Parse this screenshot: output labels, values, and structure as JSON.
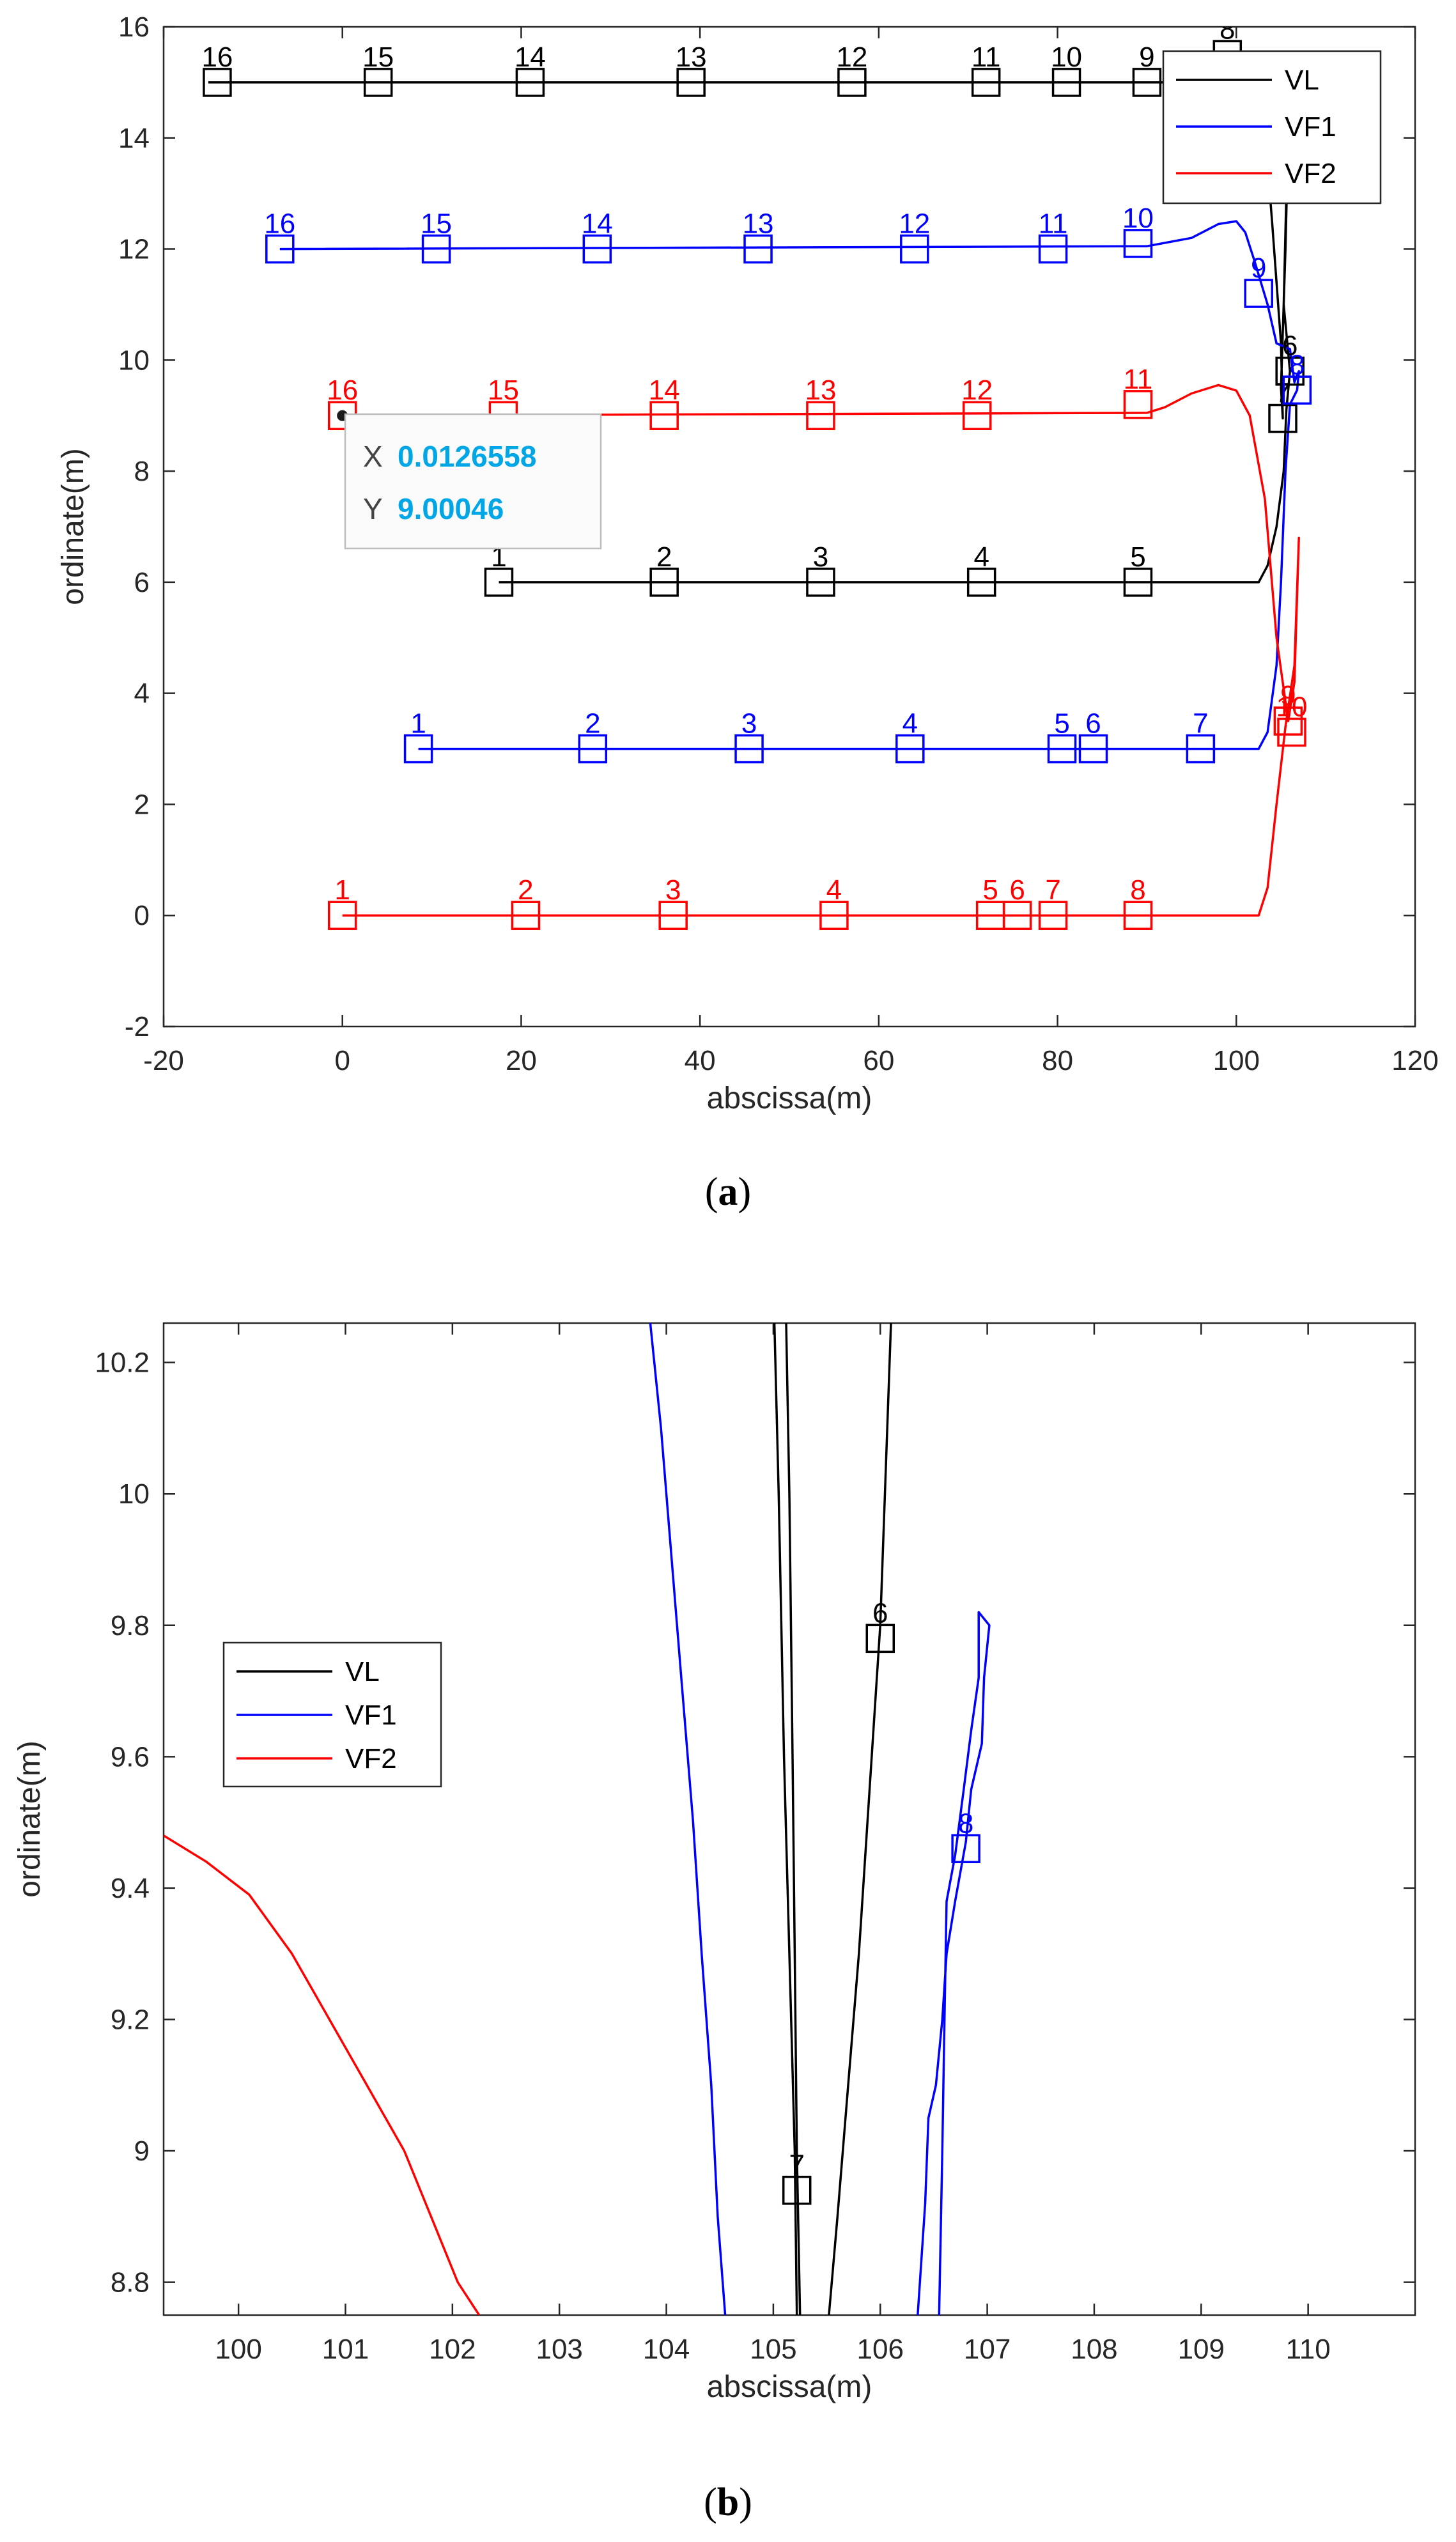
{
  "chart_data": [
    {
      "type": "line",
      "panel": "a",
      "caption_label": "a",
      "xlabel": "abscissa(m)",
      "ylabel": "ordinate(m)",
      "xlim": [
        -20,
        120
      ],
      "ylim": [
        -2,
        16
      ],
      "xticks": [
        -20,
        0,
        20,
        40,
        60,
        80,
        100,
        120
      ],
      "yticks": [
        -2,
        0,
        2,
        4,
        6,
        8,
        10,
        12,
        14,
        16
      ],
      "grid": false,
      "legend": {
        "placement": "top-right",
        "entries": [
          "VL",
          "VF1",
          "VF2"
        ]
      },
      "series": [
        {
          "name": "VL",
          "color": "#000000",
          "line": [
            [
              -15,
              15
            ],
            [
              99,
              15
            ],
            [
              100,
              15.3
            ],
            [
              101,
              15.5
            ],
            [
              102,
              15.4
            ],
            [
              103,
              14.5
            ],
            [
              104,
              12.5
            ],
            [
              105,
              10.3
            ],
            [
              105.2,
              8.95
            ],
            [
              105,
              9.5
            ],
            [
              105.5,
              12
            ],
            [
              105.8,
              14
            ],
            [
              106,
              15.5
            ],
            [
              105.6,
              13
            ],
            [
              105.3,
              11
            ],
            [
              106,
              9.8
            ],
            [
              105.6,
              9.1
            ],
            [
              105.3,
              8
            ],
            [
              104.5,
              7
            ],
            [
              103.5,
              6.3
            ],
            [
              102.5,
              6
            ],
            [
              17.5,
              6
            ]
          ],
          "markers": [
            {
              "label": "1",
              "x": 17.5,
              "y": 6
            },
            {
              "label": "2",
              "x": 36,
              "y": 6
            },
            {
              "label": "3",
              "x": 53.5,
              "y": 6
            },
            {
              "label": "4",
              "x": 71.5,
              "y": 6
            },
            {
              "label": "5",
              "x": 89,
              "y": 6
            },
            {
              "label": "6",
              "x": 106,
              "y": 9.8
            },
            {
              "label": "7",
              "x": 105.2,
              "y": 8.95
            },
            {
              "label": "8",
              "x": 99,
              "y": 15.5
            },
            {
              "label": "9",
              "x": 90,
              "y": 15
            },
            {
              "label": "10",
              "x": 81,
              "y": 15
            },
            {
              "label": "11",
              "x": 72,
              "y": 15
            },
            {
              "label": "12",
              "x": 57,
              "y": 15
            },
            {
              "label": "13",
              "x": 39,
              "y": 15
            },
            {
              "label": "14",
              "x": 21,
              "y": 15
            },
            {
              "label": "15",
              "x": 4,
              "y": 15
            },
            {
              "label": "16",
              "x": -14,
              "y": 15
            }
          ]
        },
        {
          "name": "VF1",
          "color": "#0000ff",
          "line": [
            [
              8.5,
              3
            ],
            [
              102.5,
              3
            ],
            [
              103.5,
              3.3
            ],
            [
              104.5,
              4.5
            ],
            [
              105,
              6
            ],
            [
              105.5,
              8
            ],
            [
              106,
              9.2
            ],
            [
              106.8,
              9.46
            ],
            [
              107,
              9.8
            ],
            [
              106.5,
              9.6
            ],
            [
              106,
              10.2
            ],
            [
              104.5,
              10.3
            ],
            [
              103.5,
              11
            ],
            [
              102,
              11.8
            ],
            [
              101,
              12.3
            ],
            [
              100,
              12.5
            ],
            [
              98,
              12.45
            ],
            [
              95,
              12.2
            ],
            [
              90,
              12.05
            ],
            [
              -7,
              12
            ]
          ],
          "markers": [
            {
              "label": "1",
              "x": 8.5,
              "y": 3
            },
            {
              "label": "2",
              "x": 28,
              "y": 3
            },
            {
              "label": "3",
              "x": 45.5,
              "y": 3
            },
            {
              "label": "4",
              "x": 63.5,
              "y": 3
            },
            {
              "label": "5",
              "x": 80.5,
              "y": 3
            },
            {
              "label": "6",
              "x": 84,
              "y": 3
            },
            {
              "label": "7",
              "x": 96,
              "y": 3
            },
            {
              "label": "8",
              "x": 106.8,
              "y": 9.46
            },
            {
              "label": "9",
              "x": 102.5,
              "y": 11.2
            },
            {
              "label": "10",
              "x": 89,
              "y": 12.1
            },
            {
              "label": "11",
              "x": 79.5,
              "y": 12
            },
            {
              "label": "12",
              "x": 64,
              "y": 12
            },
            {
              "label": "13",
              "x": 46.5,
              "y": 12
            },
            {
              "label": "14",
              "x": 28.5,
              "y": 12
            },
            {
              "label": "15",
              "x": 10.5,
              "y": 12
            },
            {
              "label": "16",
              "x": -7,
              "y": 12
            }
          ]
        },
        {
          "name": "VF2",
          "color": "#ff0000",
          "line": [
            [
              0,
              0
            ],
            [
              102.5,
              0
            ],
            [
              103.5,
              0.5
            ],
            [
              104.5,
              2
            ],
            [
              105.5,
              3.4
            ],
            [
              106.5,
              4.5
            ],
            [
              107,
              6.8
            ],
            [
              106.5,
              4.2
            ],
            [
              105.8,
              3.5
            ],
            [
              104.5,
              5
            ],
            [
              103.2,
              7.5
            ],
            [
              101.5,
              9
            ],
            [
              100,
              9.45
            ],
            [
              98,
              9.55
            ],
            [
              95,
              9.4
            ],
            [
              92,
              9.15
            ],
            [
              90,
              9.05
            ],
            [
              0,
              9
            ]
          ],
          "markers": [
            {
              "label": "1",
              "x": 0,
              "y": 0
            },
            {
              "label": "2",
              "x": 20.5,
              "y": 0
            },
            {
              "label": "3",
              "x": 37,
              "y": 0
            },
            {
              "label": "4",
              "x": 55,
              "y": 0
            },
            {
              "label": "5",
              "x": 72.5,
              "y": 0
            },
            {
              "label": "6",
              "x": 75.5,
              "y": 0
            },
            {
              "label": "7",
              "x": 79.5,
              "y": 0
            },
            {
              "label": "8",
              "x": 89,
              "y": 0
            },
            {
              "label": "9",
              "x": 105.8,
              "y": 3.5
            },
            {
              "label": "10",
              "x": 106.2,
              "y": 3.3
            },
            {
              "label": "11",
              "x": 89,
              "y": 9.2
            },
            {
              "label": "12",
              "x": 71,
              "y": 9
            },
            {
              "label": "13",
              "x": 53.5,
              "y": 9
            },
            {
              "label": "14",
              "x": 36,
              "y": 9
            },
            {
              "label": "15",
              "x": 18,
              "y": 9
            },
            {
              "label": "16",
              "x": 0,
              "y": 9
            }
          ]
        }
      ],
      "datatip": {
        "x_label": "X",
        "x_value": "0.0126558",
        "y_label": "Y",
        "y_value": "9.00046",
        "point": [
          0,
          9
        ]
      }
    },
    {
      "type": "line",
      "panel": "b",
      "caption_label": "b",
      "xlabel": "abscissa(m)",
      "ylabel": "ordinate(m)",
      "xlim": [
        99.3,
        111
      ],
      "ylim": [
        8.75,
        10.26
      ],
      "xticks": [
        100,
        101,
        102,
        103,
        104,
        105,
        106,
        107,
        108,
        109,
        110
      ],
      "yticks": [
        8.8,
        9,
        9.2,
        9.4,
        9.6,
        9.8,
        10,
        10.2
      ],
      "ytick_labels": [
        "8.8",
        "9",
        "9.2",
        "9.4",
        "9.6",
        "9.8",
        "10",
        "10.2"
      ],
      "grid": false,
      "legend": {
        "placement": "top-left",
        "entries": [
          "VL",
          "VF1",
          "VF2"
        ]
      },
      "series": [
        {
          "name": "VL",
          "color": "#000000",
          "lines": [
            [
              [
                105.01,
                10.26
              ],
              [
                105.05,
                10
              ],
              [
                105.1,
                9.6
              ],
              [
                105.15,
                9.3
              ],
              [
                105.2,
                9.0
              ],
              [
                105.22,
                8.75
              ]
            ],
            [
              [
                105.12,
                10.26
              ],
              [
                105.15,
                10
              ],
              [
                105.18,
                9.6
              ],
              [
                105.2,
                9.3
              ],
              [
                105.22,
                9.0
              ],
              [
                105.25,
                8.75
              ]
            ],
            [
              [
                106.1,
                10.26
              ],
              [
                106.0,
                9.8
              ],
              [
                105.9,
                9.55
              ],
              [
                105.8,
                9.3
              ],
              [
                105.7,
                9.1
              ],
              [
                105.6,
                8.9
              ],
              [
                105.52,
                8.75
              ]
            ]
          ],
          "markers": [
            {
              "label": "6",
              "x": 106.0,
              "y": 9.78
            },
            {
              "label": "7",
              "x": 105.22,
              "y": 8.94
            }
          ]
        },
        {
          "name": "VF1",
          "color": "#0000ff",
          "lines": [
            [
              [
                103.85,
                10.26
              ],
              [
                103.95,
                10.1
              ],
              [
                104.05,
                9.9
              ],
              [
                104.15,
                9.7
              ],
              [
                104.25,
                9.5
              ],
              [
                104.33,
                9.3
              ],
              [
                104.42,
                9.1
              ],
              [
                104.48,
                8.9
              ],
              [
                104.55,
                8.75
              ]
            ],
            [
              [
                106.35,
                8.75
              ],
              [
                106.42,
                8.92
              ],
              [
                106.45,
                9.05
              ],
              [
                106.52,
                9.1
              ],
              [
                106.58,
                9.2
              ],
              [
                106.62,
                9.3
              ],
              [
                106.7,
                9.38
              ],
              [
                106.8,
                9.47
              ],
              [
                106.85,
                9.55
              ],
              [
                106.95,
                9.62
              ],
              [
                106.97,
                9.72
              ],
              [
                107.02,
                9.8
              ],
              [
                106.92,
                9.82
              ],
              [
                106.92,
                9.72
              ],
              [
                106.85,
                9.64
              ],
              [
                106.78,
                9.55
              ],
              [
                106.7,
                9.45
              ],
              [
                106.62,
                9.38
              ],
              [
                106.6,
                9.2
              ],
              [
                106.58,
                9.0
              ],
              [
                106.55,
                8.75
              ]
            ]
          ],
          "markers": [
            {
              "label": "8",
              "x": 106.8,
              "y": 9.46
            }
          ]
        },
        {
          "name": "VF2",
          "color": "#ff0000",
          "lines": [
            [
              [
                99.3,
                9.48
              ],
              [
                99.7,
                9.44
              ],
              [
                100.1,
                9.39
              ],
              [
                100.5,
                9.3
              ],
              [
                100.85,
                9.2
              ],
              [
                101.2,
                9.1
              ],
              [
                101.55,
                9.0
              ],
              [
                101.8,
                8.9
              ],
              [
                102.05,
                8.8
              ],
              [
                102.25,
                8.75
              ]
            ]
          ],
          "markers": []
        }
      ]
    }
  ]
}
